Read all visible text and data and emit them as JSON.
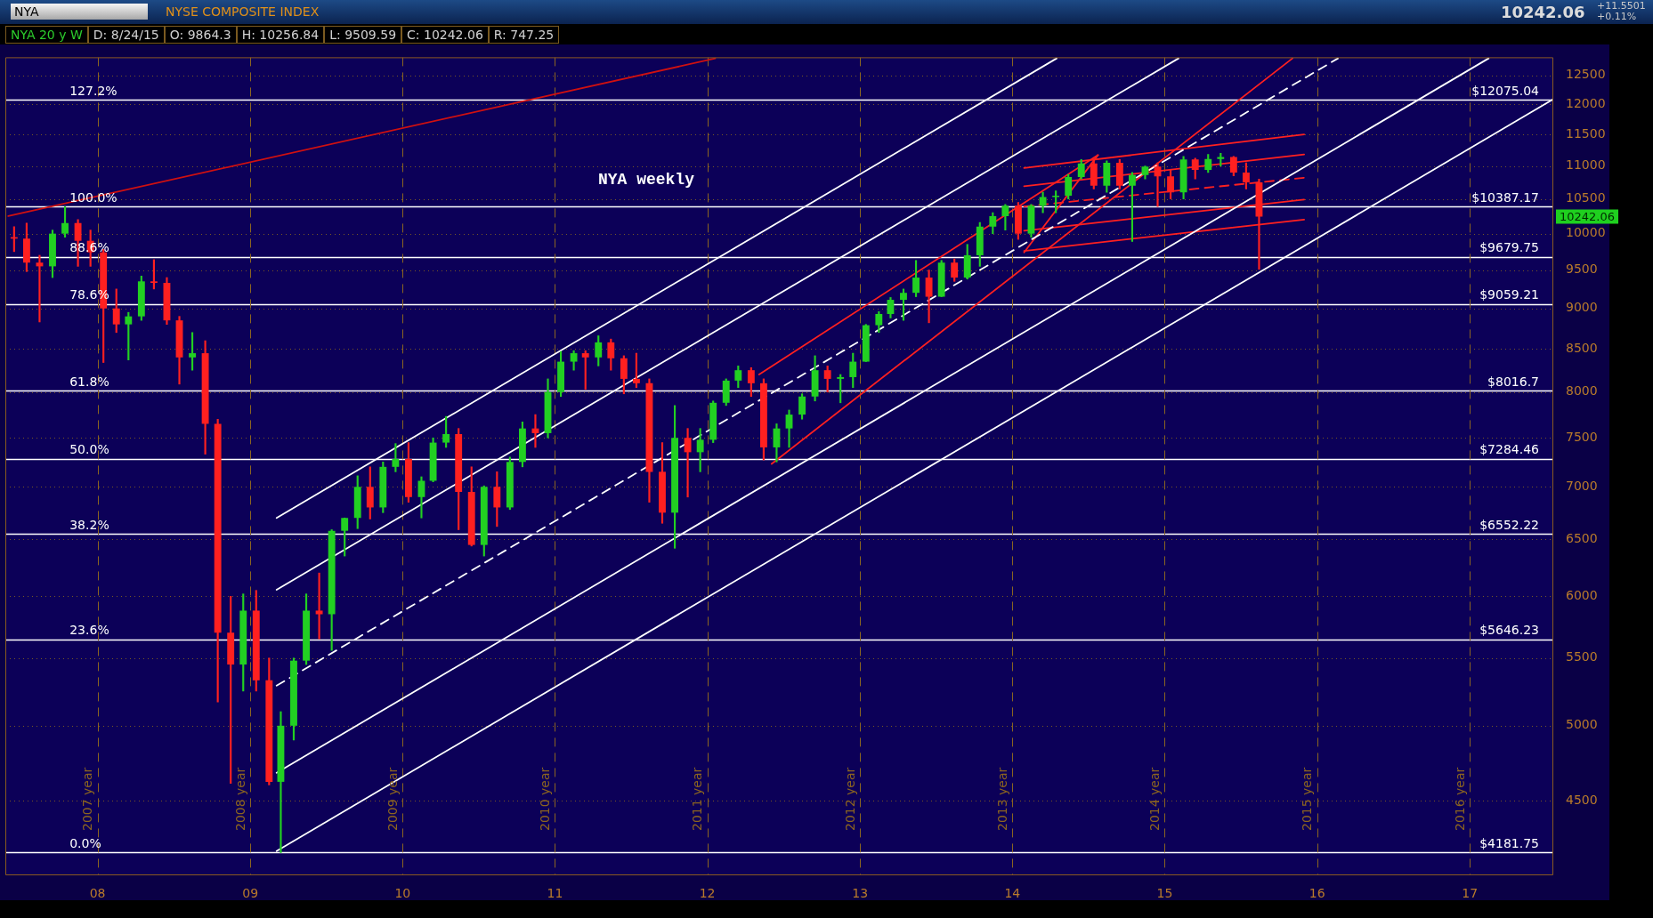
{
  "chart_data": {
    "type": "candlestick",
    "title": "NYSE COMPOSITE INDEX",
    "subtitle": "NYA 20 y W  D: 8/24/15  O: 9864.3  H: 10256.84  L: 9509.59  C: 10242.06  R: 747.25",
    "x": [
      "2007-06-15",
      "2007-07-15",
      "2007-08-15",
      "2007-09-15",
      "2007-10-15",
      "2007-11-15",
      "2007-12-15",
      "2008-01-15",
      "2008-02-15",
      "2008-03-15",
      "2008-04-15",
      "2008-05-15",
      "2008-06-15",
      "2008-07-15",
      "2008-08-15",
      "2008-09-15",
      "2008-10-15",
      "2008-11-15",
      "2008-12-15",
      "2009-01-15",
      "2009-02-15",
      "2009-03-15",
      "2009-04-15",
      "2009-05-15",
      "2009-06-15",
      "2009-07-15",
      "2009-08-15",
      "2009-09-15",
      "2009-10-15",
      "2009-11-15",
      "2009-12-15",
      "2010-01-15",
      "2010-02-15",
      "2010-03-15",
      "2010-04-15",
      "2010-05-15",
      "2010-06-15",
      "2010-07-15",
      "2010-08-15",
      "2010-09-15",
      "2010-10-15",
      "2010-11-15",
      "2010-12-15",
      "2011-01-15",
      "2011-02-15",
      "2011-03-15",
      "2011-04-15",
      "2011-05-15",
      "2011-06-15",
      "2011-07-15",
      "2011-08-15",
      "2011-09-15",
      "2011-10-15",
      "2011-11-15",
      "2011-12-15",
      "2012-01-15",
      "2012-02-15",
      "2012-03-15",
      "2012-04-15",
      "2012-05-15",
      "2012-06-15",
      "2012-07-15",
      "2012-08-15",
      "2012-09-15",
      "2012-10-15",
      "2012-11-15",
      "2012-12-15",
      "2013-01-15",
      "2013-02-15",
      "2013-03-15",
      "2013-04-15",
      "2013-05-15",
      "2013-06-15",
      "2013-07-15",
      "2013-08-15",
      "2013-09-15",
      "2013-10-15",
      "2013-11-15",
      "2013-12-15",
      "2014-01-15",
      "2014-02-15",
      "2014-03-15",
      "2014-04-15",
      "2014-05-15",
      "2014-06-15",
      "2014-07-15",
      "2014-08-15",
      "2014-09-15",
      "2014-10-15",
      "2014-11-15",
      "2014-12-15",
      "2015-01-15",
      "2015-02-15",
      "2015-03-15",
      "2015-04-15",
      "2015-05-15",
      "2015-06-15",
      "2015-07-15",
      "2015-08-15"
    ],
    "ohlc": [
      [
        9950,
        10100,
        9750,
        9930
      ],
      [
        9930,
        10150,
        9480,
        9600
      ],
      [
        9600,
        9700,
        8830,
        9550
      ],
      [
        9550,
        10050,
        9400,
        10000
      ],
      [
        10000,
        10387,
        9950,
        10150
      ],
      [
        10150,
        10200,
        9550,
        9900
      ],
      [
        9900,
        10050,
        9550,
        9740
      ],
      [
        9740,
        9780,
        8340,
        9000
      ],
      [
        9000,
        9250,
        8700,
        8800
      ],
      [
        8800,
        8950,
        8370,
        8900
      ],
      [
        8900,
        9420,
        8850,
        9350
      ],
      [
        9350,
        9640,
        9250,
        9330
      ],
      [
        9330,
        9400,
        8800,
        8850
      ],
      [
        8850,
        8900,
        8090,
        8400
      ],
      [
        8400,
        8700,
        8250,
        8450
      ],
      [
        8450,
        8600,
        7330,
        7650
      ],
      [
        7650,
        7700,
        5170,
        5700
      ],
      [
        5700,
        6000,
        4610,
        5450
      ],
      [
        5450,
        6020,
        5250,
        5880
      ],
      [
        5880,
        6050,
        5250,
        5330
      ],
      [
        5330,
        5500,
        4600,
        4620
      ],
      [
        4620,
        5100,
        4181.75,
        5000
      ],
      [
        5000,
        5500,
        4900,
        5480
      ],
      [
        5480,
        6020,
        5450,
        5880
      ],
      [
        5880,
        6200,
        5650,
        5850
      ],
      [
        5850,
        6590,
        5560,
        6580
      ],
      [
        6580,
        6700,
        6350,
        6700
      ],
      [
        6700,
        7110,
        6600,
        7000
      ],
      [
        7000,
        7200,
        6690,
        6800
      ],
      [
        6800,
        7250,
        6750,
        7200
      ],
      [
        7200,
        7440,
        7150,
        7280
      ],
      [
        7280,
        7450,
        6850,
        6900
      ],
      [
        6900,
        7100,
        6700,
        7060
      ],
      [
        7060,
        7500,
        7050,
        7450
      ],
      [
        7450,
        7730,
        7400,
        7540
      ],
      [
        7540,
        7600,
        6590,
        6950
      ],
      [
        6950,
        7200,
        6440,
        6450
      ],
      [
        6450,
        7010,
        6350,
        7000
      ],
      [
        7000,
        7150,
        6620,
        6800
      ],
      [
        6800,
        7300,
        6780,
        7250
      ],
      [
        7250,
        7670,
        7200,
        7600
      ],
      [
        7600,
        7750,
        7400,
        7550
      ],
      [
        7550,
        8150,
        7500,
        8000
      ],
      [
        8000,
        8470,
        7950,
        8350
      ],
      [
        8350,
        8480,
        8250,
        8450
      ],
      [
        8450,
        8480,
        8030,
        8400
      ],
      [
        8400,
        8660,
        8300,
        8580
      ],
      [
        8580,
        8620,
        8250,
        8390
      ],
      [
        8390,
        8420,
        7980,
        8150
      ],
      [
        8150,
        8450,
        8050,
        8100
      ],
      [
        8100,
        8150,
        6850,
        7150
      ],
      [
        7150,
        7450,
        6650,
        6750
      ],
      [
        6750,
        7850,
        6420,
        7500
      ],
      [
        7500,
        7600,
        6900,
        7350
      ],
      [
        7350,
        7600,
        7150,
        7480
      ],
      [
        7480,
        7900,
        7450,
        7880
      ],
      [
        7880,
        8150,
        7850,
        8130
      ],
      [
        8130,
        8300,
        8050,
        8250
      ],
      [
        8250,
        8280,
        7950,
        8100
      ],
      [
        8100,
        8150,
        7270,
        7400
      ],
      [
        7400,
        7650,
        7250,
        7600
      ],
      [
        7600,
        7800,
        7400,
        7750
      ],
      [
        7750,
        7980,
        7700,
        7950
      ],
      [
        7950,
        8420,
        7900,
        8250
      ],
      [
        8250,
        8300,
        8000,
        8150
      ],
      [
        8150,
        8200,
        7880,
        8170
      ],
      [
        8170,
        8450,
        8050,
        8350
      ],
      [
        8350,
        8800,
        8350,
        8790
      ],
      [
        8790,
        8960,
        8700,
        8930
      ],
      [
        8930,
        9140,
        8880,
        9110
      ],
      [
        9110,
        9250,
        8850,
        9200
      ],
      [
        9200,
        9630,
        9150,
        9400
      ],
      [
        9400,
        9500,
        8820,
        9150
      ],
      [
        9150,
        9630,
        9150,
        9600
      ],
      [
        9600,
        9650,
        9350,
        9400
      ],
      [
        9400,
        9850,
        9380,
        9700
      ],
      [
        9700,
        10160,
        9550,
        10100
      ],
      [
        10100,
        10300,
        10000,
        10250
      ],
      [
        10250,
        10420,
        10050,
        10400
      ],
      [
        10400,
        10450,
        9920,
        10000
      ],
      [
        10000,
        10420,
        9950,
        10400
      ],
      [
        10400,
        10600,
        10300,
        10530
      ],
      [
        10530,
        10620,
        10300,
        10550
      ],
      [
        10550,
        10870,
        10500,
        10830
      ],
      [
        10830,
        11100,
        10800,
        11040
      ],
      [
        11040,
        11110,
        10650,
        10700
      ],
      [
        10700,
        11080,
        10600,
        11050
      ],
      [
        11050,
        11100,
        10650,
        10700
      ],
      [
        10700,
        10900,
        9890,
        10860
      ],
      [
        10860,
        11000,
        10800,
        10990
      ],
      [
        10990,
        11050,
        10390,
        10840
      ],
      [
        10840,
        10950,
        10500,
        10600
      ],
      [
        10600,
        11150,
        10500,
        11100
      ],
      [
        11100,
        11120,
        10800,
        10940
      ],
      [
        10940,
        11180,
        10900,
        11110
      ],
      [
        11110,
        11200,
        11000,
        11140
      ],
      [
        11140,
        11150,
        10850,
        10900
      ],
      [
        10900,
        11050,
        10650,
        10750
      ],
      [
        10750,
        10800,
        9509.59,
        10242.06
      ]
    ],
    "colors": [
      "#ff2020",
      "#ff2020",
      "#ff2020",
      "#22d022",
      "#22d022",
      "#ff2020",
      "#ff2020",
      "#ff2020",
      "#ff2020",
      "#22d022",
      "#22d022",
      "#ff2020",
      "#ff2020",
      "#ff2020",
      "#22d022",
      "#ff2020",
      "#ff2020",
      "#ff2020",
      "#22d022",
      "#ff2020",
      "#ff2020",
      "#22d022",
      "#22d022",
      "#22d022",
      "#ff2020",
      "#22d022",
      "#22d022",
      "#22d022",
      "#ff2020",
      "#22d022",
      "#22d022",
      "#ff2020",
      "#22d022",
      "#22d022",
      "#22d022",
      "#ff2020",
      "#ff2020",
      "#22d022",
      "#ff2020",
      "#22d022",
      "#22d022",
      "#ff2020",
      "#22d022",
      "#22d022",
      "#22d022",
      "#ff2020",
      "#22d022",
      "#ff2020",
      "#ff2020",
      "#ff2020",
      "#ff2020",
      "#ff2020",
      "#22d022",
      "#ff2020",
      "#22d022",
      "#22d022",
      "#22d022",
      "#22d022",
      "#ff2020",
      "#ff2020",
      "#22d022",
      "#22d022",
      "#22d022",
      "#22d022",
      "#ff2020",
      "#22d022",
      "#22d022",
      "#22d022",
      "#22d022",
      "#22d022",
      "#22d022",
      "#22d022",
      "#ff2020",
      "#22d022",
      "#ff2020",
      "#22d022",
      "#22d022",
      "#22d022",
      "#22d022",
      "#ff2020",
      "#22d022",
      "#22d022",
      "#22d022",
      "#22d022",
      "#22d022",
      "#ff2020",
      "#22d022",
      "#ff2020",
      "#22d022",
      "#22d022",
      "#ff2020",
      "#ff2020",
      "#22d022",
      "#ff2020",
      "#22d022",
      "#22d022",
      "#ff2020",
      "#ff2020",
      "#ff2020"
    ],
    "series": [
      {
        "type": "line",
        "x": [
          "2009-03-05",
          "2014-04-17"
        ],
        "values": [
          6700,
          12800
        ],
        "color": "#ffffff"
      },
      {
        "type": "line",
        "x": [
          "2009-03-05",
          "2015-02-03"
        ],
        "values": [
          6055,
          12800
        ],
        "color": "#ffffff"
      },
      {
        "type": "line",
        "x": [
          "2009-03-05",
          "2016-02-20"
        ],
        "values": [
          5290,
          12800
        ],
        "color": "#ffffff",
        "line_style": "dashed"
      },
      {
        "type": "line",
        "x": [
          "2009-03-05",
          "2017-02-15"
        ],
        "values": [
          4679,
          12800
        ],
        "color": "#ffffff"
      },
      {
        "type": "line",
        "x": [
          "2009-03-05",
          "2017-07-19"
        ],
        "values": [
          4191,
          12080
        ],
        "color": "#ffffff"
      },
      {
        "type": "line",
        "x": [
          "2007-06-01",
          "2012-01-20"
        ],
        "values": [
          10250,
          12800
        ],
        "color": "#d01010"
      },
      {
        "type": "line",
        "x": [
          "2012-05-04",
          "2014-07-25"
        ],
        "values": [
          8200,
          11170
        ],
        "color": "#ff2020"
      },
      {
        "type": "line",
        "x": [
          "2012-06-03",
          "2015-11-03"
        ],
        "values": [
          7230,
          12800
        ],
        "color": "#ff2020"
      },
      {
        "type": "line",
        "x": [
          "2014-01-29",
          "2014-07-25"
        ],
        "values": [
          9740,
          11170
        ],
        "color": "#ff2020"
      },
      {
        "type": "line",
        "x": [
          "2014-01-29",
          "2015-12-01"
        ],
        "values": [
          10970,
          11500
        ],
        "color": "#ff2020"
      },
      {
        "type": "line",
        "x": [
          "2014-01-29",
          "2015-12-01"
        ],
        "values": [
          10690,
          11180
        ],
        "color": "#ff2020"
      },
      {
        "type": "line",
        "x": [
          "2014-01-29",
          "2015-12-01"
        ],
        "values": [
          10390,
          10820
        ],
        "color": "#ff2020",
        "line_style": "dashed"
      },
      {
        "type": "line",
        "x": [
          "2014-01-29",
          "2015-12-01"
        ],
        "values": [
          10040,
          10490
        ],
        "color": "#ff2020"
      },
      {
        "type": "line",
        "x": [
          "2014-01-29",
          "2015-12-01"
        ],
        "values": [
          9760,
          10200
        ],
        "color": "#ff2020"
      }
    ],
    "xlim": [
      "2007-05-25",
      "2017-07-20"
    ],
    "xticks": [
      {
        "value": "2008-01-01",
        "label": "08"
      },
      {
        "value": "2009-01-01",
        "label": "09"
      },
      {
        "value": "2010-01-01",
        "label": "10"
      },
      {
        "value": "2011-01-01",
        "label": "11"
      },
      {
        "value": "2012-01-01",
        "label": "12"
      },
      {
        "value": "2013-01-01",
        "label": "13"
      },
      {
        "value": "2014-01-01",
        "label": "14"
      },
      {
        "value": "2015-01-01",
        "label": "15"
      },
      {
        "value": "2016-01-01",
        "label": "16"
      },
      {
        "value": "2017-01-01",
        "label": "17"
      }
    ],
    "ylim": [
      4050,
      12820
    ],
    "yticks": [
      4500,
      5000,
      5500,
      6000,
      6500,
      7000,
      7500,
      8000,
      8500,
      9000,
      9500,
      10000,
      10500,
      11000,
      11500,
      12000,
      12500
    ],
    "log": "y",
    "grid": "y",
    "ref_lines": [
      {
        "axis": "y",
        "value": 12075.04,
        "label": "$12075.04",
        "color": "#ffffff"
      },
      {
        "axis": "y",
        "value": 10387.17,
        "label": "$10387.17",
        "color": "#ffffff"
      },
      {
        "axis": "y",
        "value": 9679.75,
        "label": "$9679.75",
        "color": "#ffffff"
      },
      {
        "axis": "y",
        "value": 9059.21,
        "label": "$9059.21",
        "color": "#ffffff"
      },
      {
        "axis": "y",
        "value": 8016.7,
        "label": "$8016.7",
        "color": "#ffffff"
      },
      {
        "axis": "y",
        "value": 7284.46,
        "label": "$7284.46",
        "color": "#ffffff"
      },
      {
        "axis": "y",
        "value": 6552.22,
        "label": "$6552.22",
        "color": "#ffffff"
      },
      {
        "axis": "y",
        "value": 5646.23,
        "label": "$5646.23",
        "color": "#ffffff"
      },
      {
        "axis": "y",
        "value": 4181.75,
        "label": "$4181.75",
        "color": "#ffffff"
      },
      {
        "axis": "x",
        "value": "2008-01-01",
        "label": "2007 year",
        "color": "#8c6420",
        "line_style": "dashed"
      },
      {
        "axis": "x",
        "value": "2009-01-01",
        "label": "2008 year",
        "color": "#8c6420",
        "line_style": "dashed"
      },
      {
        "axis": "x",
        "value": "2010-01-01",
        "label": "2009 year",
        "color": "#8c6420",
        "line_style": "dashed"
      },
      {
        "axis": "x",
        "value": "2011-01-01",
        "label": "2010 year",
        "color": "#8c6420",
        "line_style": "dashed"
      },
      {
        "axis": "x",
        "value": "2012-01-01",
        "label": "2011 year",
        "color": "#8c6420",
        "line_style": "dashed"
      },
      {
        "axis": "x",
        "value": "2013-01-01",
        "label": "2012 year",
        "color": "#8c6420",
        "line_style": "dashed"
      },
      {
        "axis": "x",
        "value": "2014-01-01",
        "label": "2013 year",
        "color": "#8c6420",
        "line_style": "dashed"
      },
      {
        "axis": "x",
        "value": "2015-01-01",
        "label": "2014 year",
        "color": "#8c6420",
        "line_style": "dashed"
      },
      {
        "axis": "x",
        "value": "2016-01-01",
        "label": "2015 year",
        "color": "#8c6420",
        "line_style": "dashed"
      },
      {
        "axis": "x",
        "value": "2017-01-01",
        "label": "2016 year",
        "color": "#8c6420",
        "line_style": "dashed"
      }
    ],
    "annotations": [
      "NYA",
      "10242.06",
      "+11.5501",
      "+0.11%",
      "NYA weekly",
      "10242.06",
      {
        "text": "127.2%",
        "x": "2007-10-26",
        "y": 12075.04
      },
      {
        "text": "100.0%",
        "x": "2007-10-26",
        "y": 10387.17
      },
      {
        "text": "88.6%",
        "x": "2007-10-26",
        "y": 9679.75
      },
      {
        "text": "78.6%",
        "x": "2007-10-26",
        "y": 9059.21
      },
      {
        "text": "61.8%",
        "x": "2007-10-26",
        "y": 8016.7
      },
      {
        "text": "50.0%",
        "x": "2007-10-26",
        "y": 7284.46
      },
      {
        "text": "38.2%",
        "x": "2007-10-26",
        "y": 6552.22
      },
      {
        "text": "23.6%",
        "x": "2007-10-26",
        "y": 5646.23
      },
      {
        "text": "0.0%",
        "x": "2007-10-26",
        "y": 4181.75
      }
    ]
  }
}
